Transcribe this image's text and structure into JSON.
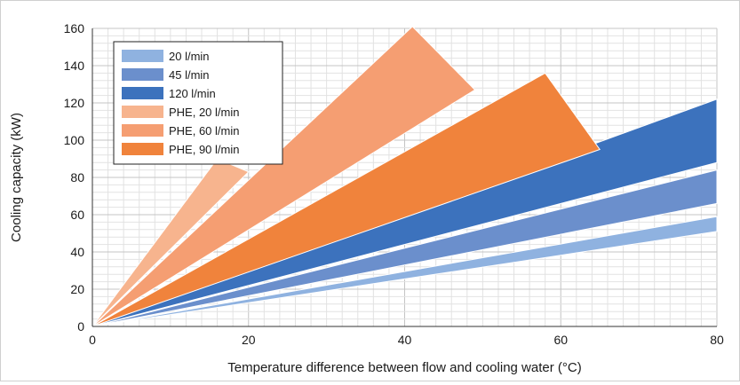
{
  "chart_data": {
    "type": "area",
    "title": "",
    "xlabel": "Temperature difference between flow and cooling water (°C)",
    "ylabel": "Cooling capacity (kW)",
    "xlim": [
      0,
      80
    ],
    "ylim": [
      0,
      160
    ],
    "x_ticks": [
      0,
      20,
      40,
      60,
      80
    ],
    "y_ticks": [
      0,
      20,
      40,
      60,
      80,
      100,
      120,
      140,
      160
    ],
    "grid": true,
    "legend_position": "top-left",
    "series": [
      {
        "name": "20 l/min",
        "color": "#8fb2e0",
        "x_start": 0,
        "x_end": 80,
        "lower": [
          [
            0,
            0
          ],
          [
            80,
            51
          ]
        ],
        "upper": [
          [
            0,
            0
          ],
          [
            80,
            59
          ]
        ]
      },
      {
        "name": "45 l/min",
        "color": "#6b8fcc",
        "x_start": 0,
        "x_end": 80,
        "lower": [
          [
            0,
            0
          ],
          [
            80,
            66
          ]
        ],
        "upper": [
          [
            0,
            0
          ],
          [
            80,
            84
          ]
        ]
      },
      {
        "name": "120 l/min",
        "color": "#3c72bd",
        "x_start": 0,
        "x_end": 80,
        "lower": [
          [
            0,
            0
          ],
          [
            80,
            88
          ]
        ],
        "upper": [
          [
            0,
            0
          ],
          [
            80,
            122
          ]
        ]
      },
      {
        "name": "PHE, 20 l/min",
        "color": "#f7b48e",
        "x_start": 0,
        "x_end": 20,
        "lower": [
          [
            0,
            0
          ],
          [
            20,
            83
          ]
        ],
        "upper": [
          [
            0,
            0
          ],
          [
            16,
            90
          ]
        ]
      },
      {
        "name": "PHE, 60 l/min",
        "color": "#f59e72",
        "x_start": 0,
        "x_end": 49,
        "lower": [
          [
            0,
            0
          ],
          [
            49,
            127
          ]
        ],
        "upper": [
          [
            0,
            0
          ],
          [
            41,
            161
          ]
        ]
      },
      {
        "name": "PHE, 90 l/min",
        "color": "#f0833c",
        "x_start": 0,
        "x_end": 65,
        "lower": [
          [
            0,
            0
          ],
          [
            65,
            95
          ]
        ],
        "upper": [
          [
            0,
            0
          ],
          [
            58,
            136
          ]
        ]
      }
    ]
  }
}
